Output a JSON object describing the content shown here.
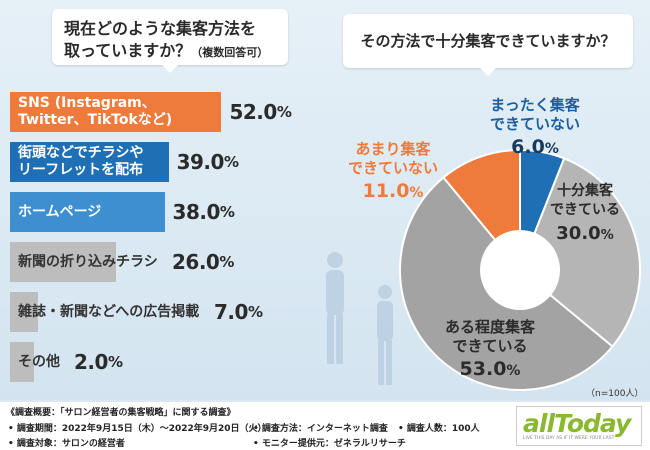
{
  "question1": {
    "main_line1": "現在どのような集客方法を",
    "main_line2": "取っていますか？",
    "note": "（複数回答可）"
  },
  "question2": {
    "text": "その方法で十分集客できていますか？"
  },
  "chart_data": [
    {
      "type": "bar",
      "orientation": "horizontal",
      "title": "現在どのような集客方法を取っていますか？（複数回答可）",
      "categories": [
        "SNS (Instagram、Twitter、TikTokなど)",
        "街頭などでチラシやリーフレットを配布",
        "ホームページ",
        "新聞の折り込みチラシ",
        "雑誌・新聞などへの広告掲載",
        "その他"
      ],
      "values": [
        52.0,
        39.0,
        38.0,
        26.0,
        7.0,
        2.0
      ],
      "unit": "%",
      "xlim": [
        0,
        60
      ],
      "colors": [
        "#ee7a3c",
        "#1f6fb5",
        "#3d8fcf",
        "#bdbdbd",
        "#bdbdbd",
        "#bdbdbd"
      ]
    },
    {
      "type": "pie",
      "title": "その方法で十分集客できていますか？",
      "categories": [
        "まったく集客できていない",
        "十分集客できている",
        "ある程度集客できている",
        "あまり集客できていない"
      ],
      "values": [
        6.0,
        30.0,
        53.0,
        11.0
      ],
      "unit": "%",
      "colors": [
        "#1f6fb5",
        "#b5b5b5",
        "#a3a3a3",
        "#ee7a3c"
      ],
      "donut": true
    }
  ],
  "bars": [
    {
      "line1": "SNS (Instagram、",
      "line2": "Twitter、TikTokなど)",
      "value": "52.0",
      "pct": "%",
      "color": "#ee7a3c",
      "text_color": "#ffffff"
    },
    {
      "line1": "街頭などでチラシや",
      "line2": "リーフレットを配布",
      "value": "39.0",
      "pct": "%",
      "color": "#1f6fb5",
      "text_color": "#ffffff"
    },
    {
      "line1": "ホームページ",
      "line2": "",
      "value": "38.0",
      "pct": "%",
      "color": "#3d8fcf",
      "text_color": "#ffffff"
    },
    {
      "line1": "新聞の折り込みチラシ",
      "line2": "",
      "value": "26.0",
      "pct": "%",
      "color": "#bdbdbd",
      "text_color": "#333333"
    },
    {
      "line1": "雑誌・新聞などへの広告掲載",
      "line2": "",
      "value": "7.0",
      "pct": "%",
      "color": "#bdbdbd",
      "text_color": "#333333"
    },
    {
      "line1": "その他",
      "line2": "",
      "value": "2.0",
      "pct": "%",
      "color": "#bdbdbd",
      "text_color": "#333333"
    }
  ],
  "pie_labels": [
    {
      "line1": "まったく集客",
      "line2": "できていない",
      "value": "6.0",
      "pct": "%",
      "color": "#1a5fa0",
      "value_color": "#1a3a5c"
    },
    {
      "line1": "十分集客",
      "line2": "できている",
      "value": "30.0",
      "pct": "%",
      "color": "#2b2b2b",
      "value_color": "#2b2b2b"
    },
    {
      "line1": "ある程度集客",
      "line2": "できている",
      "value": "53.0",
      "pct": "%",
      "color": "#2b2b2b",
      "value_color": "#2b2b2b"
    },
    {
      "line1": "あまり集客",
      "line2": "できていない",
      "value": "11.0",
      "pct": "%",
      "color": "#ee7a3c",
      "value_color": "#ee7a3c"
    }
  ],
  "n_note": "（n=100人）",
  "meta": {
    "overview": "《調査概要：「サロン経営者の集客戦略」に関する調査》",
    "period": "• 調査期間：2022年9月15日（木）～2022年9月20日（火）",
    "target": "• 調査対象：サロンの経営者",
    "method": "• 調査方法：インターネット調査",
    "provider": "• モニター提供元：ゼネラルリサーチ",
    "count": "• 調査人数：100人"
  },
  "logo": {
    "text": "allToday",
    "tagline": "LIVE THIS DAY AS IF IT WERE YOUR LAST"
  }
}
